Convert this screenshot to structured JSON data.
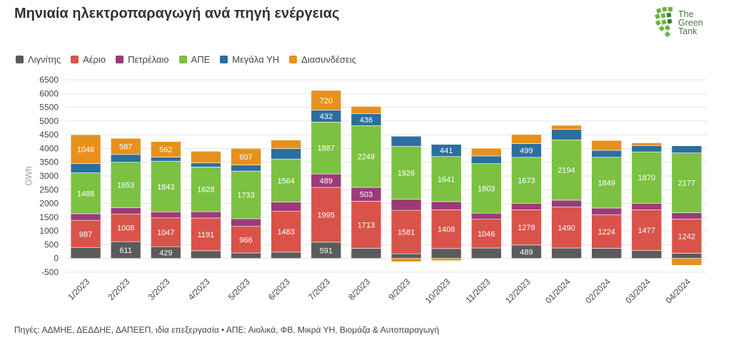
{
  "title": "Μηνιαία ηλεκτροπαραγωγή ανά πηγή ενέργειας",
  "logo": {
    "line1": "The",
    "line2": "Green",
    "line3": "Tank"
  },
  "source": "Πηγές: ΑΔΜΗΕ, ΔΕΔΔΗΕ, ΔΑΠΕΕΠ, ιδία επεξεργασία • ΑΠΕ: Αιολικά, ΦΒ, Μικρά ΥΗ, Βιομάζα & Αυτοπαραγωγή",
  "chart_data": {
    "type": "bar",
    "stacked": true,
    "ylabel": "GWh",
    "ylim": [
      -500,
      6500
    ],
    "yticks": [
      -500,
      0,
      500,
      1000,
      1500,
      2000,
      2500,
      3000,
      3500,
      4000,
      4500,
      5000,
      5500,
      6000,
      6500
    ],
    "grid": true,
    "legend_position": "top-left",
    "categories": [
      "1/2023",
      "2/2023",
      "3/2023",
      "4/2023",
      "5/2023",
      "6/2023",
      "7/2023",
      "8/2023",
      "9/2023",
      "10/2023",
      "11/2023",
      "12/2023",
      "01/2024",
      "02/2024",
      "03/2024",
      "04/2024"
    ],
    "series": [
      {
        "name": "Λιγνίτης",
        "color": "#5b5b5b",
        "values": [
          400,
          611,
          429,
          280,
          200,
          230,
          591,
          370,
          170,
          360,
          380,
          489,
          380,
          370,
          290,
          190
        ],
        "labels": [
          null,
          "611",
          "429",
          null,
          null,
          null,
          "591",
          null,
          null,
          null,
          null,
          "489",
          null,
          null,
          null,
          null
        ]
      },
      {
        "name": "Αέριο",
        "color": "#d9534a",
        "values": [
          987,
          1008,
          1047,
          1191,
          966,
          1483,
          1995,
          1713,
          1581,
          1408,
          1046,
          1278,
          1490,
          1224,
          1477,
          1242
        ],
        "labels": [
          "987",
          "1008",
          "1047",
          "1191",
          "966",
          "1483",
          "1995",
          "1713",
          "1581",
          "1408",
          "1046",
          "1278",
          "1490",
          "1224",
          "1477",
          "1242"
        ]
      },
      {
        "name": "Πετρέλαιο",
        "color": "#9c3b78",
        "values": [
          240,
          230,
          220,
          230,
          280,
          340,
          489,
          503,
          400,
          300,
          220,
          240,
          250,
          240,
          240,
          230
        ],
        "labels": [
          null,
          null,
          null,
          null,
          null,
          null,
          "489",
          "503",
          null,
          null,
          null,
          null,
          null,
          null,
          null,
          null
        ]
      },
      {
        "name": "ΑΠΕ",
        "color": "#7cc142",
        "values": [
          1488,
          1653,
          1843,
          1628,
          1733,
          1564,
          1887,
          2249,
          1926,
          1641,
          1803,
          1673,
          2194,
          1849,
          1870,
          2177
        ],
        "labels": [
          "1488",
          "1653",
          "1843",
          "1628",
          "1733",
          "1564",
          "1887",
          "2249",
          "1926",
          "1641",
          "1803",
          "1673",
          "2194",
          "1849",
          "1870",
          "2177"
        ]
      },
      {
        "name": "Μεγάλα ΥΗ",
        "color": "#2b6f9e",
        "values": [
          340,
          280,
          150,
          150,
          220,
          380,
          432,
          436,
          370,
          441,
          280,
          499,
          380,
          250,
          230,
          260
        ],
        "labels": [
          null,
          null,
          null,
          null,
          null,
          null,
          "432",
          "436",
          null,
          "441",
          null,
          "499",
          null,
          null,
          null,
          null
        ]
      },
      {
        "name": "Διασυνδέσεις",
        "color": "#e8901c",
        "values": [
          1046,
          587,
          562,
          420,
          607,
          310,
          720,
          260,
          -120,
          -80,
          280,
          330,
          150,
          360,
          100,
          -250
        ],
        "labels": [
          "1046",
          "587",
          "562",
          null,
          "607",
          null,
          "720",
          null,
          null,
          null,
          null,
          null,
          null,
          null,
          null,
          null
        ]
      }
    ]
  }
}
